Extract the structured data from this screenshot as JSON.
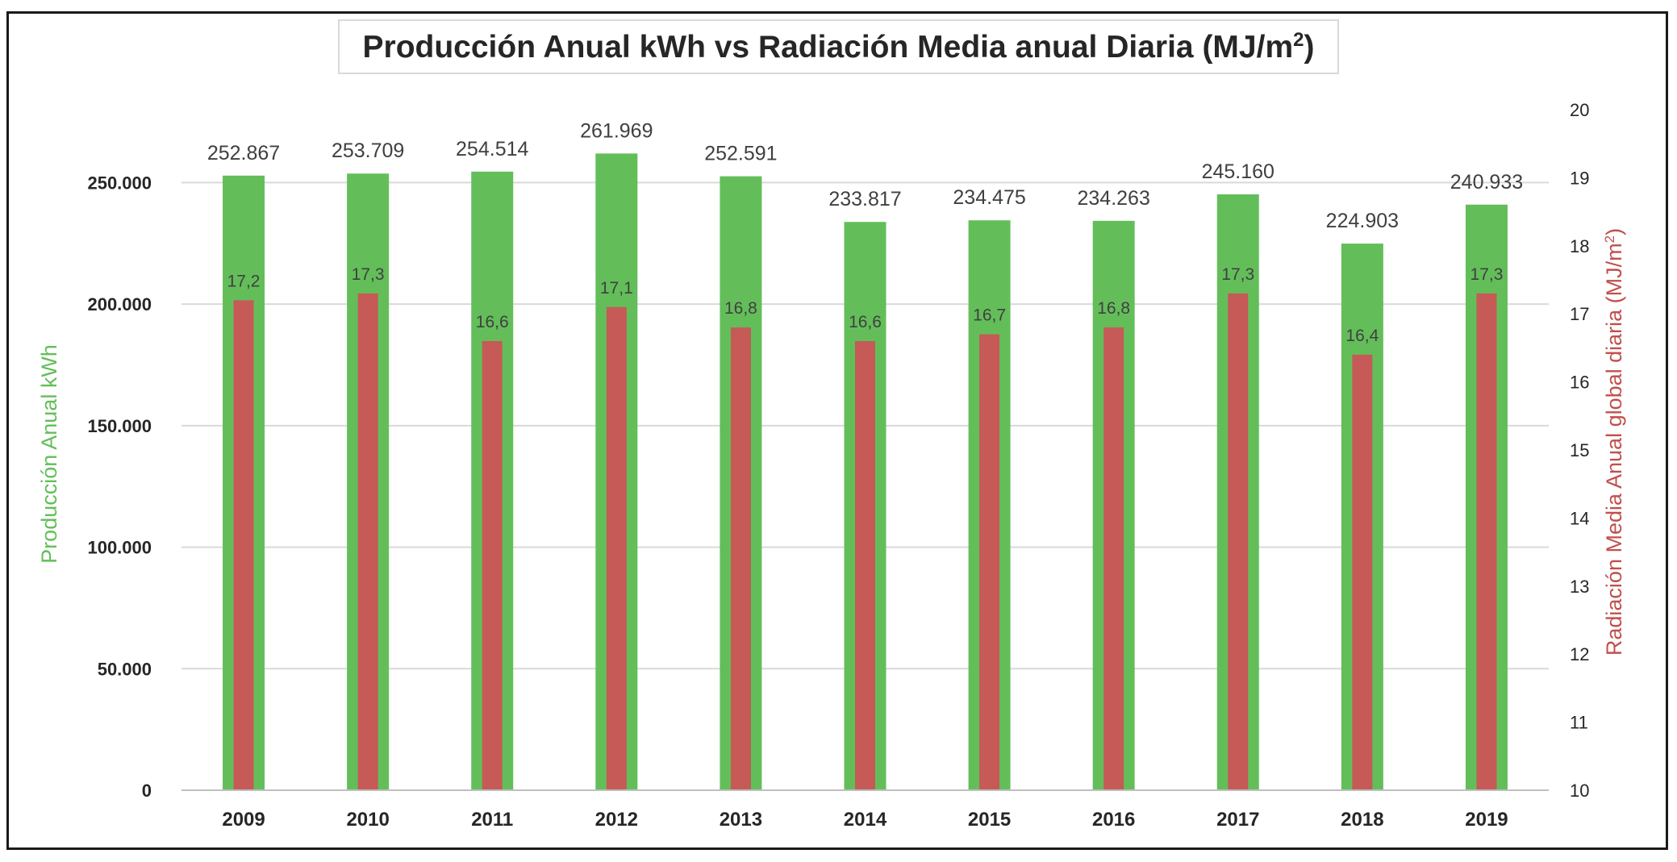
{
  "chart_data": {
    "type": "bar",
    "title_main": "Producción Anual kWh vs Radiación Media anual Diaria (MJ/m",
    "title_sup": "2",
    "title_end": ")",
    "categories": [
      "2009",
      "2010",
      "2011",
      "2012",
      "2013",
      "2014",
      "2015",
      "2016",
      "2017",
      "2018",
      "2019"
    ],
    "series": [
      {
        "axis": "left",
        "color": "#63be5a",
        "values": [
          252867,
          253709,
          254514,
          261969,
          252591,
          233817,
          234475,
          234263,
          245160,
          224903,
          240933
        ],
        "labels": [
          "252.867",
          "253.709",
          "254.514",
          "261.969",
          "252.591",
          "233.817",
          "234.475",
          "234.263",
          "245.160",
          "224.903",
          "240.933"
        ]
      },
      {
        "axis": "right",
        "color": "#c55a57",
        "values": [
          17.2,
          17.3,
          16.6,
          17.1,
          16.8,
          16.6,
          16.7,
          16.8,
          17.3,
          16.4,
          17.3
        ],
        "labels": [
          "17,2",
          "17,3",
          "16,6",
          "17,1",
          "16,8",
          "16,6",
          "16,7",
          "16,8",
          "17,3",
          "16,4",
          "17,3"
        ]
      }
    ],
    "y_left": {
      "label": "Producción Anual kWh",
      "color": "#63be5a",
      "range": [
        0,
        280000
      ],
      "ticks": [
        0,
        50000,
        100000,
        150000,
        200000,
        250000
      ],
      "tick_labels": [
        "0",
        "50.000",
        "100.000",
        "150.000",
        "200.000",
        "250.000"
      ]
    },
    "y_right": {
      "label_main": "Radiación Media Anual global diaria (MJ/m",
      "label_sup": "2",
      "label_end": ")",
      "color": "#c0504d",
      "range": [
        10,
        20
      ],
      "ticks": [
        10,
        11,
        12,
        13,
        14,
        15,
        16,
        17,
        18,
        19,
        20
      ],
      "tick_labels": [
        "10",
        "11",
        "12",
        "13",
        "14",
        "15",
        "16",
        "17",
        "18",
        "19",
        "20"
      ]
    },
    "grid": true,
    "legend": "none"
  }
}
